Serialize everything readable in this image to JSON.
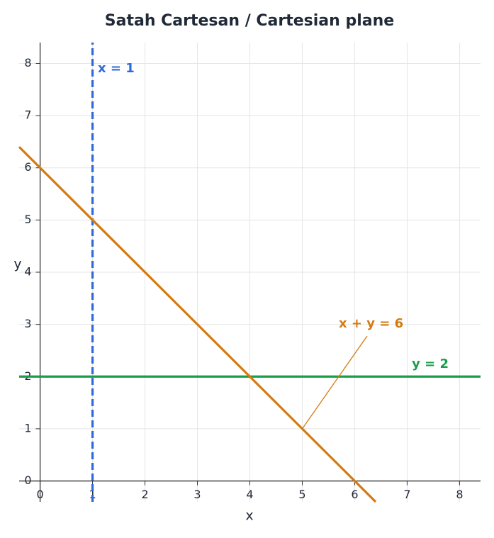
{
  "chart_data": {
    "type": "line",
    "title": "Satah Cartesan / Cartesian plane",
    "xlabel": "x",
    "ylabel": "y",
    "xlim": [
      -0.4,
      8.4
    ],
    "ylim": [
      -0.4,
      8.4
    ],
    "xticks": [
      0,
      1,
      2,
      3,
      4,
      5,
      6,
      7,
      8
    ],
    "yticks": [
      0,
      1,
      2,
      3,
      4,
      5,
      6,
      7,
      8
    ],
    "grid": true,
    "series": [
      {
        "name": "x = 1",
        "color": "#2f6bd8",
        "dashed": true,
        "x": [
          1,
          1
        ],
        "y": [
          -0.4,
          8.4
        ]
      },
      {
        "name": "y = 2",
        "color": "#1a9e4a",
        "dashed": false,
        "x": [
          -0.4,
          8.4
        ],
        "y": [
          2,
          2
        ]
      },
      {
        "name": "x + y = 6",
        "color": "#d47a0f",
        "dashed": false,
        "x": [
          -0.4,
          6.4
        ],
        "y": [
          6.4,
          -0.4
        ]
      }
    ]
  }
}
